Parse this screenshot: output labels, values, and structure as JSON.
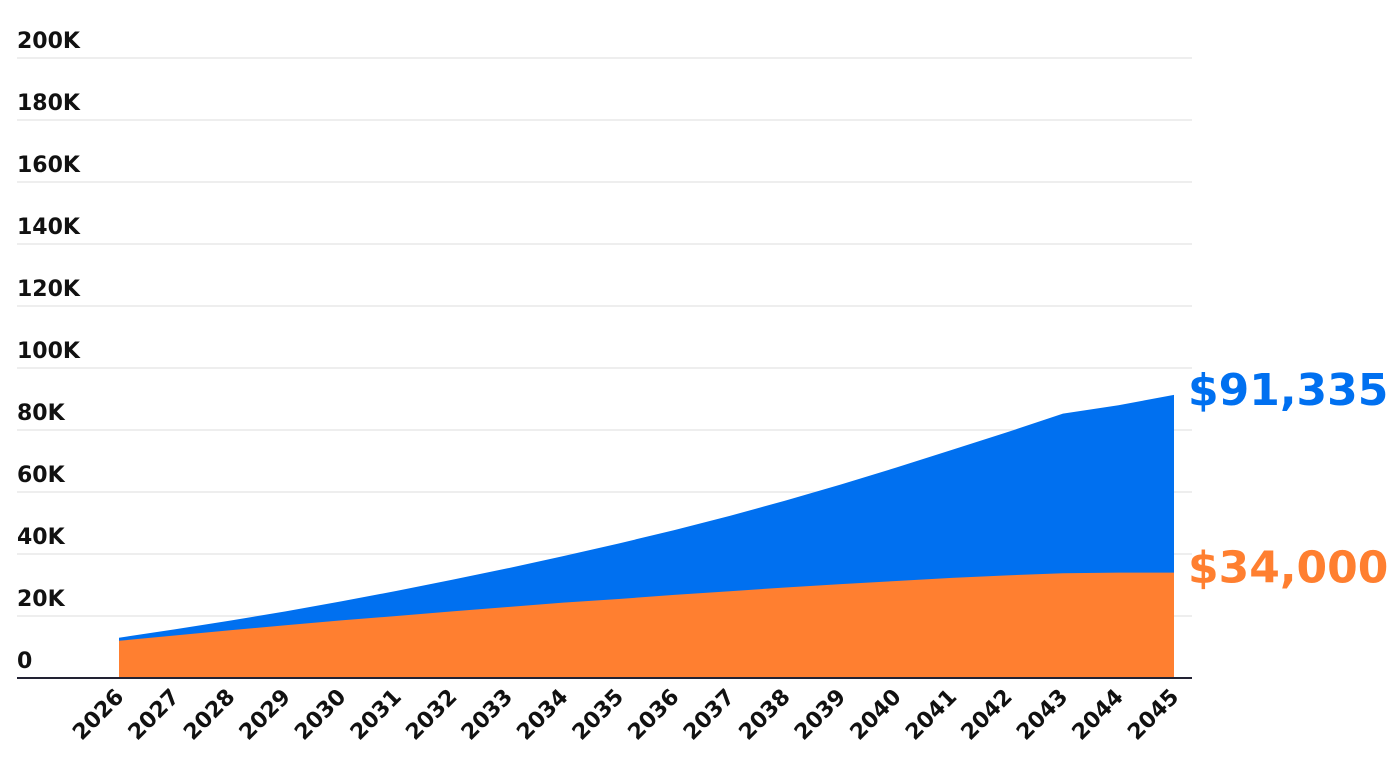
{
  "chart_data": {
    "type": "area",
    "stacked": false,
    "x": [
      "2026",
      "2027",
      "2028",
      "2029",
      "2030",
      "2031",
      "2032",
      "2033",
      "2034",
      "2035",
      "2036",
      "2037",
      "2038",
      "2039",
      "2040",
      "2041",
      "2042",
      "2043",
      "2044",
      "2045"
    ],
    "series": [
      {
        "color": "#0070f0",
        "values": [
          13000,
          15700,
          18500,
          21500,
          24700,
          28100,
          31700,
          35400,
          39300,
          43400,
          47700,
          52300,
          57200,
          62400,
          67900,
          73600,
          79300,
          85300,
          88000,
          91335
        ],
        "end_label": "$91,335"
      },
      {
        "color": "#ff7f30",
        "values": [
          12000,
          13700,
          15400,
          17000,
          18600,
          20000,
          21500,
          22900,
          24300,
          25500,
          26800,
          28000,
          29200,
          30300,
          31300,
          32300,
          33100,
          33800,
          34000,
          34000
        ],
        "end_label": "$34,000"
      }
    ],
    "yticks": [
      "0",
      "20K",
      "40K",
      "60K",
      "80K",
      "100K",
      "120K",
      "140K",
      "160K",
      "180K",
      "200K"
    ],
    "ylim": [
      0,
      200000
    ],
    "grid": true,
    "legend": "none"
  }
}
